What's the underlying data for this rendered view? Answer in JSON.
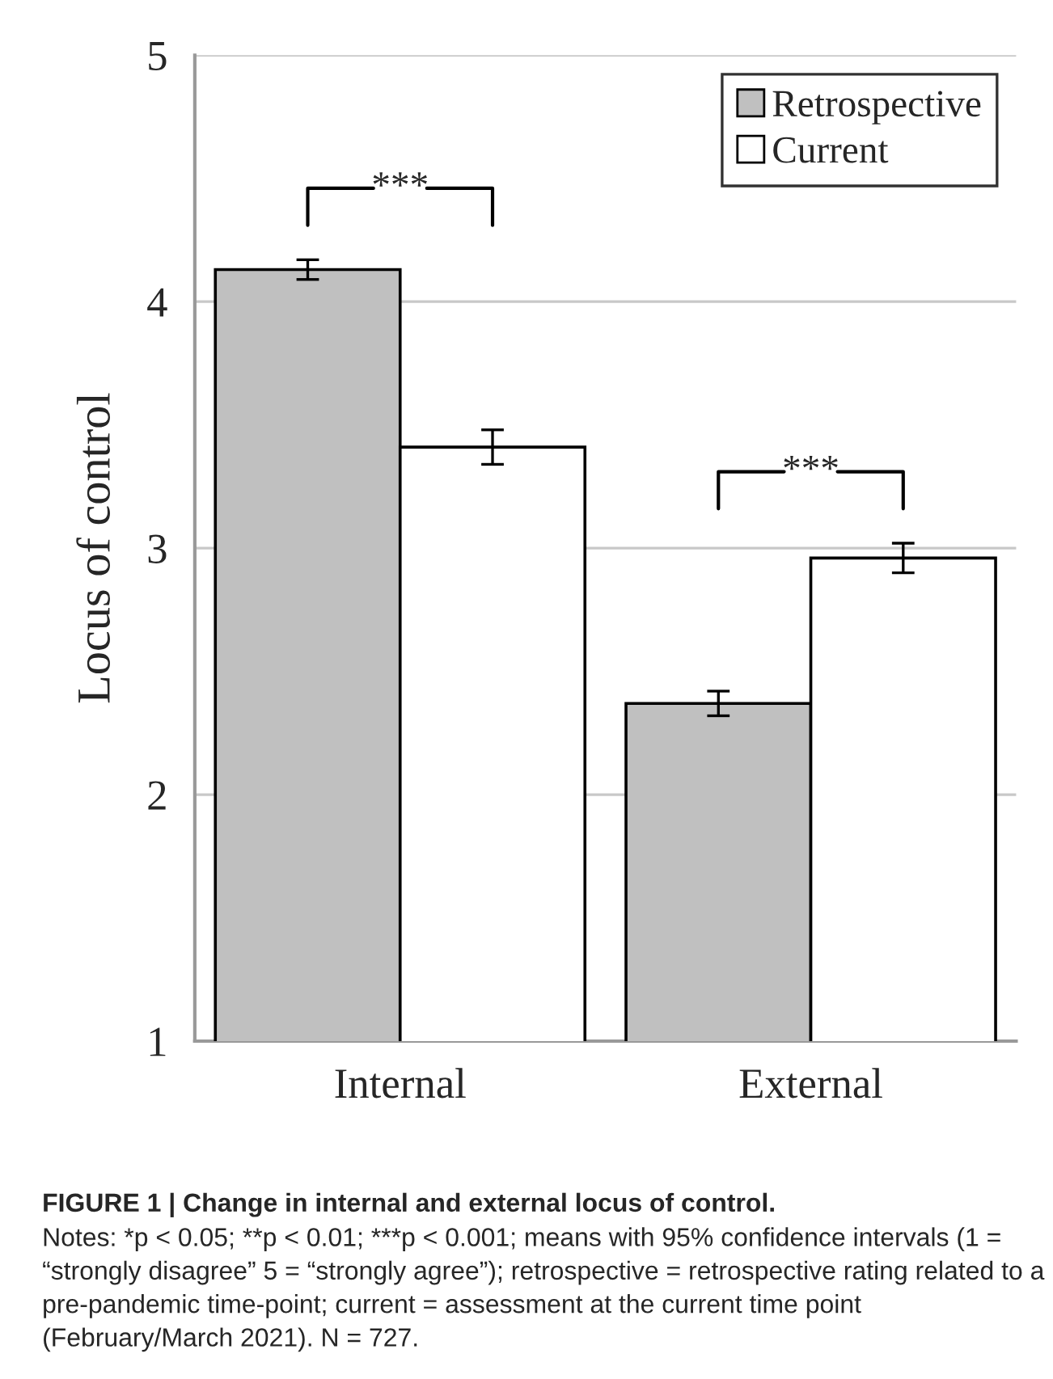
{
  "chart_data": {
    "type": "bar",
    "title": "FIGURE 1 | Change in internal and external locus of control.",
    "ylabel": "Locus of control",
    "categories": [
      "Internal",
      "External"
    ],
    "series": [
      {
        "name": "Retrospective",
        "color": "#c0c0c0",
        "values": [
          4.13,
          2.37
        ],
        "errors": [
          0.04,
          0.05
        ]
      },
      {
        "name": "Current",
        "color": "#ffffff",
        "values": [
          3.41,
          2.96
        ],
        "errors": [
          0.07,
          0.06
        ]
      }
    ],
    "ylim": [
      1,
      5
    ],
    "yticks": [
      1,
      2,
      3,
      4,
      5
    ],
    "grid": "y",
    "legend": "top right",
    "annotations": [
      "***",
      "***",
      "Notes: *p < 0.05; **p < 0.01; ***p < 0.001; means with 95% confidence intervals (1 = “strongly disagree” 5 = “strongly agree”); retrospective = retrospective rating related to a pre-pandemic time-point; current = assessment at the current time point (February/March 2021). N = 727."
    ]
  }
}
